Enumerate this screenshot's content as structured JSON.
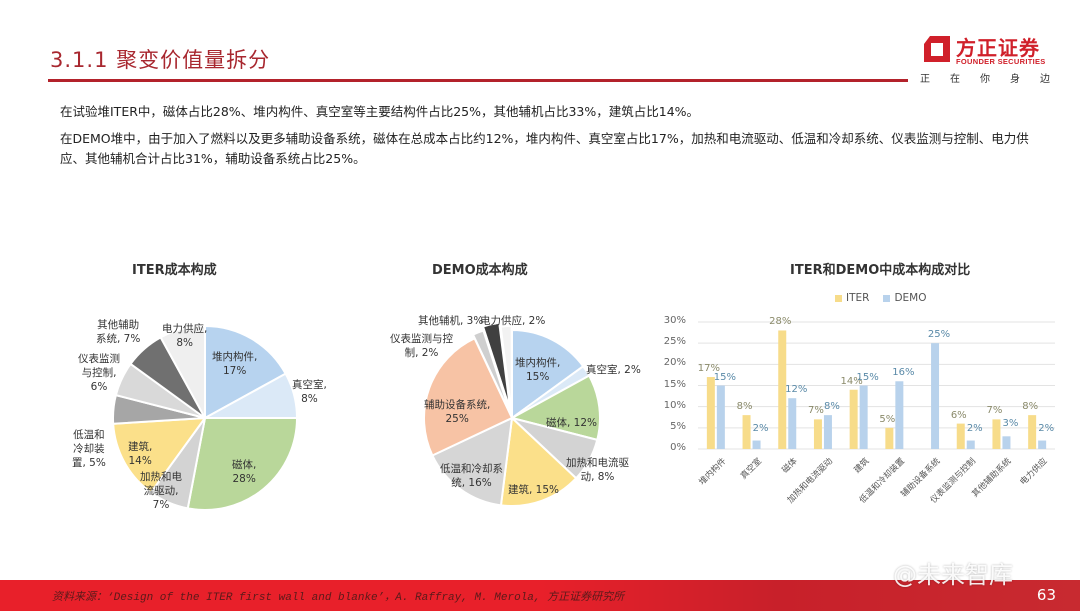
{
  "header": {
    "title": "3.1.1 聚变价值量拆分",
    "logo": {
      "cn": "方正证券",
      "en": "FOUNDER SECURITIES",
      "slogan": [
        "正",
        "在",
        "你",
        "身",
        "边"
      ],
      "brand_color": "#d0202a"
    }
  },
  "body_text": {
    "p1": "在试验堆ITER中，磁体占比28%、堆内构件、真空室等主要结构件占比25%，其他辅机占比33%，建筑占比14%。",
    "p2": "在DEMO堆中，由于加入了燃料以及更多辅助设备系统，磁体在总成本占比约12%，堆内构件、真空室占比17%，加热和电流驱动、低温和冷却系统、仪表监测与控制、电力供应、其他辅机合计占比31%，辅助设备系统占比25%。"
  },
  "chart_data": [
    {
      "type": "pie",
      "title": "ITER成本构成",
      "labels": [
        "堆内构件",
        "真空室",
        "磁体",
        "加热和电流驱动",
        "建筑",
        "低温和冷却装置",
        "仪表监测与控制",
        "其他辅助系统",
        "电力供应"
      ],
      "values": [
        17,
        8,
        28,
        7,
        14,
        5,
        6,
        7,
        8
      ],
      "colors": [
        "#b7d3ef",
        "#dbe9f7",
        "#b9d79a",
        "#d3d3d3",
        "#fbe08a",
        "#a6a6a6",
        "#d9d9d9",
        "#707070",
        "#efefef"
      ],
      "display_labels": [
        "堆内构件,\n17%",
        "真空室,\n8%",
        "磁体,\n28%",
        "加热和电\n流驱动,\n7%",
        "建筑,\n14%",
        "低温和\n冷却装\n置, 5%",
        "仪表监测\n与控制,\n6%",
        "其他辅助\n系统, 7%",
        "电力供应,\n8%"
      ]
    },
    {
      "type": "pie",
      "title": "DEMO成本构成",
      "labels": [
        "堆内构件",
        "真空室",
        "磁体",
        "加热和电流驱动",
        "建筑",
        "低温和冷却系统",
        "辅助设备系统",
        "仪表监测与控制",
        "其他辅机",
        "电力供应"
      ],
      "values": [
        15,
        2,
        12,
        8,
        15,
        16,
        25,
        2,
        3,
        2
      ],
      "colors": [
        "#b7d3ef",
        "#dbe9f7",
        "#b9d79a",
        "#d3d3d3",
        "#fbe08a",
        "#d6d6d6",
        "#f7c3a5",
        "#cfcfcf",
        "#404040",
        "#f2f2f2"
      ],
      "display_labels": [
        "堆内构件,\n15%",
        "真空室, 2%",
        "磁体, 12%",
        "加热和电流驱\n动, 8%",
        "建筑, 15%",
        "低温和冷却系\n统, 16%",
        "辅助设备系统,\n25%",
        "仪表监测与控\n制, 2%",
        "其他辅机, 3%",
        "电力供应, 2%"
      ]
    },
    {
      "type": "bar",
      "title": "ITER和DEMO中成本构成对比",
      "categories": [
        "堆内构件",
        "真空室",
        "磁体",
        "加热和电流驱动",
        "建筑",
        "低温和冷却装置",
        "辅助设备系统",
        "仪表监测与控制",
        "其他辅助系统",
        "电力供应"
      ],
      "series": [
        {
          "name": "ITER",
          "color": "#f7dc8a",
          "values": [
            17,
            8,
            28,
            7,
            14,
            5,
            null,
            6,
            7,
            8
          ],
          "labels": [
            "17%",
            "8%",
            "28%",
            "7%",
            "14%",
            "5%",
            "",
            "6%",
            "7%",
            "8%"
          ]
        },
        {
          "name": "DEMO",
          "color": "#b8d2ec",
          "values": [
            15,
            2,
            12,
            8,
            15,
            16,
            25,
            2,
            3,
            2
          ],
          "labels": [
            "15%",
            "2%",
            "12%",
            "8%",
            "15%",
            "16%",
            "25%",
            "2%",
            "3%",
            "2%"
          ]
        }
      ],
      "yticks": [
        "0%",
        "5%",
        "10%",
        "15%",
        "20%",
        "25%",
        "30%"
      ],
      "ylim": [
        0,
        30
      ],
      "grid": true,
      "legend_position": "top",
      "xlabel": "",
      "ylabel": ""
    }
  ],
  "footer": {
    "source": "资料来源：‘Design of the ITER first wall and blanke’，A. Raffray, M. Merola, 方正证券研究所",
    "page_number": "63",
    "watermark": "@未来智库"
  }
}
